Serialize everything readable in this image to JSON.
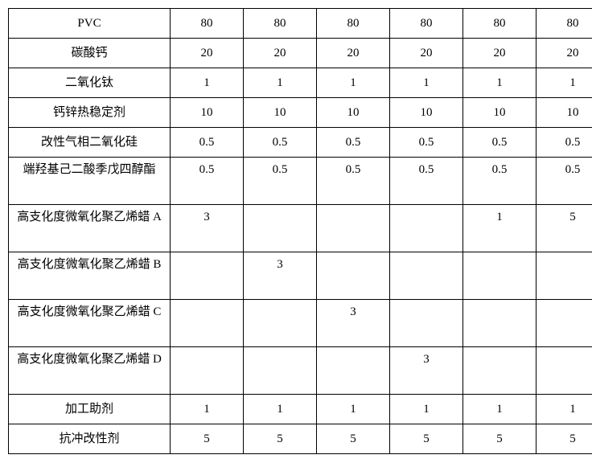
{
  "table": {
    "rows": [
      {
        "label": "PVC",
        "values": [
          "80",
          "80",
          "80",
          "80",
          "80",
          "80"
        ],
        "tall": false
      },
      {
        "label": "碳酸钙",
        "values": [
          "20",
          "20",
          "20",
          "20",
          "20",
          "20"
        ],
        "tall": false
      },
      {
        "label": "二氧化钛",
        "values": [
          "1",
          "1",
          "1",
          "1",
          "1",
          "1"
        ],
        "tall": false
      },
      {
        "label": "钙锌热稳定剂",
        "values": [
          "10",
          "10",
          "10",
          "10",
          "10",
          "10"
        ],
        "tall": false
      },
      {
        "label": "改性气相二氧化硅",
        "values": [
          "0.5",
          "0.5",
          "0.5",
          "0.5",
          "0.5",
          "0.5"
        ],
        "tall": false
      },
      {
        "label": "端羟基己二酸季戊四醇酯",
        "values": [
          "0.5",
          "0.5",
          "0.5",
          "0.5",
          "0.5",
          "0.5"
        ],
        "tall": true
      },
      {
        "label": "高支化度微氧化聚乙烯蜡 A",
        "values": [
          "3",
          "",
          "",
          "",
          "1",
          "5"
        ],
        "tall": true
      },
      {
        "label": "高支化度微氧化聚乙烯蜡 B",
        "values": [
          "",
          "3",
          "",
          "",
          "",
          ""
        ],
        "tall": true
      },
      {
        "label": "高支化度微氧化聚乙烯蜡 C",
        "values": [
          "",
          "",
          "3",
          "",
          "",
          ""
        ],
        "tall": true
      },
      {
        "label": "高支化度微氧化聚乙烯蜡 D",
        "values": [
          "",
          "",
          "",
          "3",
          "",
          ""
        ],
        "tall": true
      },
      {
        "label": "加工助剂",
        "values": [
          "1",
          "1",
          "1",
          "1",
          "1",
          "1"
        ],
        "tall": false
      },
      {
        "label": "抗冲改性剂",
        "values": [
          "5",
          "5",
          "5",
          "5",
          "5",
          "5"
        ],
        "tall": false
      }
    ],
    "border_color": "#000000",
    "background_color": "#ffffff",
    "font_size": 15,
    "label_col_width": 196,
    "val_col_width": 86
  }
}
